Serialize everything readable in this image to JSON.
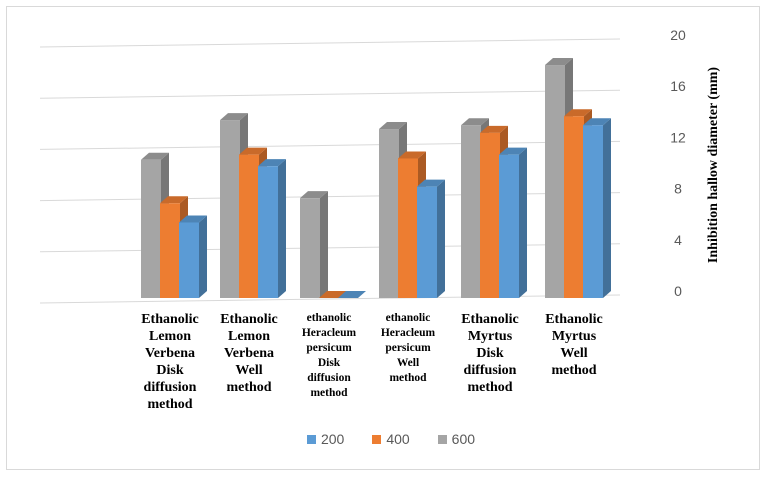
{
  "chart_data": {
    "type": "bar",
    "style": "3d-clustered-column",
    "categories": [
      "Ethanolic Lemon Verbena Disk diffusion method",
      "Ethanolic Lemon Verbena Well method",
      "ethanolic Heracleum persicum Disk diffusion method",
      "ethanolic Heracleum persicum Well method",
      "Ethanolic Myrtus Disk diffusion method",
      "Ethanolic Myrtus Well method"
    ],
    "series": [
      {
        "name": "600",
        "color": "#a5a5a5",
        "values": [
          10.8,
          13.9,
          7.8,
          13.2,
          13.5,
          18.2
        ]
      },
      {
        "name": "400",
        "color": "#ed7d31",
        "values": [
          7.4,
          11.2,
          0,
          10.9,
          12.9,
          14.2
        ]
      },
      {
        "name": "200",
        "color": "#5b9bd5",
        "values": [
          5.9,
          10.3,
          0,
          8.7,
          11.2,
          13.5
        ]
      }
    ],
    "ylabel": "Inhibition hallow diameter (mm)",
    "ylim": [
      0,
      20
    ],
    "yticks": [
      "0",
      "4",
      "8",
      "12",
      "16",
      "20"
    ],
    "y_axis_side": "right",
    "grid": true,
    "legend": {
      "position": "bottom",
      "order": [
        "200",
        "400",
        "600"
      ]
    }
  }
}
